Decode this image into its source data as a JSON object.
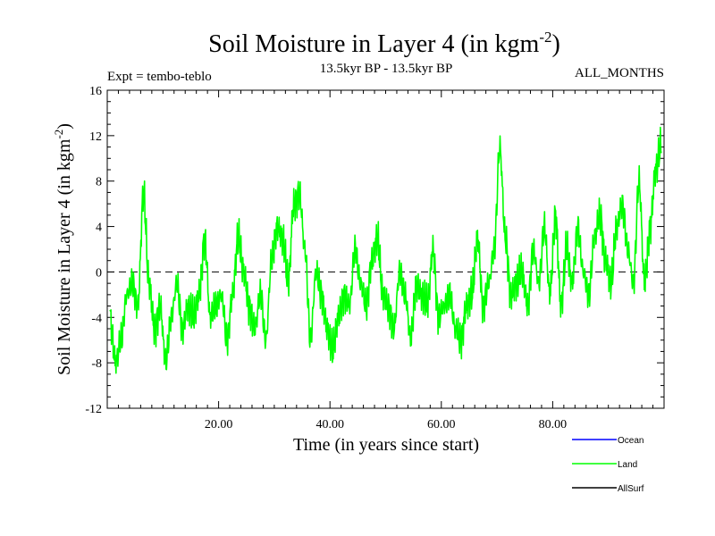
{
  "chart_data": {
    "type": "line",
    "title": "Soil Moisture in Layer 4 (in kgm",
    "title_sup": "-2",
    "title_close": ")",
    "subtitle_left": "Expt = tembo-teblo",
    "subtitle_center": "13.5kyr BP - 13.5kyr BP",
    "subtitle_right": "ALL_MONTHS",
    "xlabel": "Time (in years since start)",
    "ylabel": "Soil Moisture in Layer 4 (in kgm",
    "ylabel_sup": "-2",
    "ylabel_close": ")",
    "xlim": [
      0,
      100
    ],
    "ylim": [
      -12,
      16
    ],
    "x_ticks": [
      20,
      40,
      60,
      80
    ],
    "x_tick_labels": [
      "20.00",
      "40.00",
      "60.00",
      "80.00"
    ],
    "y_ticks": [
      -12,
      -8,
      -4,
      0,
      4,
      8,
      12,
      16
    ],
    "y_tick_labels": [
      "-12",
      "-8",
      "-4",
      "0",
      "4",
      "8",
      "12",
      "16"
    ],
    "zero_line": true,
    "legend": [
      {
        "name": "Ocean",
        "color": "#0000ff"
      },
      {
        "name": "Land",
        "color": "#00ff00"
      },
      {
        "name": "AllSurf",
        "color": "#000000"
      }
    ],
    "series": [
      {
        "name": "Land",
        "color": "#00ff00",
        "x": [
          0.5,
          1.5,
          2.5,
          3.5,
          4.5,
          5.5,
          6.5,
          7.5,
          8.5,
          9.5,
          10.5,
          11.5,
          12.5,
          13.5,
          14.5,
          15.5,
          16.5,
          17.5,
          18.5,
          19.5,
          20.5,
          21.5,
          22.5,
          23.5,
          24.5,
          25.5,
          26.5,
          27.5,
          28.5,
          29.5,
          30.5,
          31.5,
          32.5,
          33.5,
          34.5,
          35.5,
          36.5,
          37.5,
          38.5,
          39.5,
          40.5,
          41.5,
          42.5,
          43.5,
          44.5,
          45.5,
          46.5,
          47.5,
          48.5,
          49.5,
          50.5,
          51.5,
          52.5,
          53.5,
          54.5,
          55.5,
          56.5,
          57.5,
          58.5,
          59.5,
          60.5,
          61.5,
          62.5,
          63.5,
          64.5,
          65.5,
          66.5,
          67.5,
          68.5,
          69.5,
          70.5,
          71.5,
          72.5,
          73.5,
          74.5,
          75.5,
          76.5,
          77.5,
          78.5,
          79.5,
          80.5,
          81.5,
          82.5,
          83.5,
          84.5,
          85.5,
          86.5,
          87.5,
          88.5,
          89.5,
          90.5,
          91.5,
          92.5,
          93.5,
          94.5,
          95.5,
          96.5,
          97.5,
          98.5,
          99.5
        ],
        "values": [
          -4,
          -8,
          -6,
          -2,
          -1,
          -3,
          7,
          -1,
          -5,
          -3,
          -8,
          -4,
          -1,
          -5,
          -3,
          -4,
          -2,
          3,
          -4,
          -3,
          -2,
          -6,
          -2,
          3,
          0,
          -3,
          -5,
          -2,
          -6,
          1,
          4,
          3,
          -1,
          6,
          7,
          2,
          -6,
          0,
          -2,
          -5,
          -7,
          -4,
          -2,
          -3,
          2,
          -1,
          -3,
          1,
          3,
          -2,
          -3,
          -5,
          0,
          -2,
          -6,
          -1,
          -2,
          -3,
          2,
          -4,
          -3,
          -2,
          -5,
          -6,
          -3,
          -2,
          3,
          -3,
          -1,
          2,
          11,
          3,
          -2,
          -1,
          0,
          -3,
          2,
          -1,
          4,
          -2,
          5,
          -3,
          2,
          -1,
          4,
          0,
          -2,
          3,
          5,
          1,
          -1,
          4,
          6,
          2,
          -1,
          8,
          -1,
          4,
          9,
          11
        ]
      }
    ]
  }
}
